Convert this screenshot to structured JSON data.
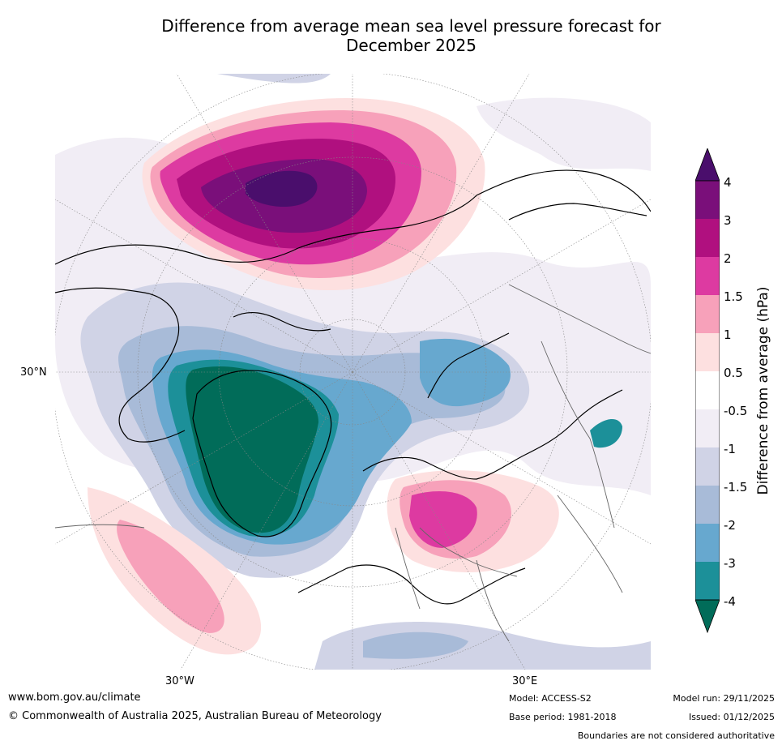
{
  "title_line1": "Difference from average mean sea level pressure forecast for",
  "title_line2": "December 2025",
  "map": {
    "projection": "north polar stereographic",
    "labels": {
      "lat_30n": "30°N",
      "lon_30w": "30°W",
      "lon_30e": "30°E"
    }
  },
  "colorbar": {
    "title": "Difference from average (hPa)",
    "levels": [
      "4",
      "3",
      "2",
      "1.5",
      "1",
      "0.5",
      "-0.5",
      "-1",
      "-1.5",
      "-2",
      "-3",
      "-4"
    ],
    "colors": {
      "gt4": "#4a0e6c",
      "3_4": "#7a0f7a",
      "2_3": "#b0107f",
      "1.5_2": "#dd3aa1",
      "1_1.5": "#f7a1ba",
      "0.5_1": "#fde0e0",
      "neutral": "#ffffff",
      "m1_m0.5": "#f1edf5",
      "m1.5_m1": "#d0d3e6",
      "m2_m1.5": "#a8bbd8",
      "m3_m2": "#67a8cf",
      "m4_m3": "#1c9099",
      "lt_m4": "#016c59"
    }
  },
  "footer": {
    "website": "www.bom.gov.au/climate",
    "copyright": "© Commonwealth of Australia 2025, Australian Bureau of Meteorology",
    "model": "Model: ACCESS-S2",
    "base_period": "Base period: 1981-2018",
    "model_run": "Model run: 29/11/2025",
    "issued": "Issued: 01/12/2025",
    "boundaries": "Boundaries are not considered authoritative"
  }
}
